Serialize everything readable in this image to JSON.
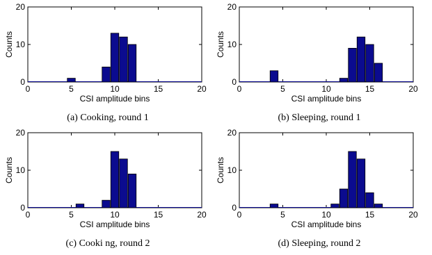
{
  "chart_data": [
    {
      "type": "bar",
      "caption": "(a) Cooking, round 1",
      "xlabel": "CSI amplitude bins",
      "ylabel": "Counts",
      "xlim": [
        0,
        20
      ],
      "ylim": [
        0,
        20
      ],
      "xticks": [
        0,
        5,
        10,
        15,
        20
      ],
      "yticks": [
        0,
        10,
        20
      ],
      "bar_color": "#0b0b8f",
      "x": [
        5,
        9,
        10,
        11,
        12
      ],
      "values": [
        1,
        4,
        13,
        12,
        10
      ]
    },
    {
      "type": "bar",
      "caption": "(b) Sleeping, round 1",
      "xlabel": "CSI amplitude bins",
      "ylabel": "Counts",
      "xlim": [
        0,
        20
      ],
      "ylim": [
        0,
        20
      ],
      "xticks": [
        0,
        5,
        10,
        15,
        20
      ],
      "yticks": [
        0,
        10,
        20
      ],
      "bar_color": "#0b0b8f",
      "x": [
        4,
        12,
        13,
        14,
        15,
        16
      ],
      "values": [
        3,
        1,
        9,
        12,
        10,
        5
      ]
    },
    {
      "type": "bar",
      "caption": "(c) Cooki ng, round 2",
      "xlabel": "CSI amplitude bins",
      "ylabel": "Counts",
      "xlim": [
        0,
        20
      ],
      "ylim": [
        0,
        20
      ],
      "xticks": [
        0,
        5,
        10,
        15,
        20
      ],
      "yticks": [
        0,
        10,
        20
      ],
      "bar_color": "#0b0b8f",
      "x": [
        6,
        9,
        10,
        11,
        12
      ],
      "values": [
        1,
        2,
        15,
        13,
        9
      ]
    },
    {
      "type": "bar",
      "caption": "(d) Sleeping, round 2",
      "xlabel": "CSI amplitude bins",
      "ylabel": "Counts",
      "xlim": [
        0,
        20
      ],
      "ylim": [
        0,
        20
      ],
      "xticks": [
        0,
        5,
        10,
        15,
        20
      ],
      "yticks": [
        0,
        10,
        20
      ],
      "bar_color": "#0b0b8f",
      "x": [
        4,
        11,
        12,
        13,
        14,
        15,
        16
      ],
      "values": [
        1,
        1,
        5,
        15,
        13,
        4,
        1
      ]
    }
  ]
}
